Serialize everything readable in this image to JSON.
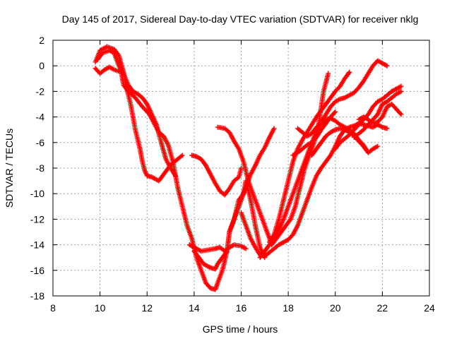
{
  "chart_data": {
    "type": "scatter",
    "title": "Day 145 of 2017, Sidereal Day-to-day VTEC variation (SDTVAR) for receiver nklg",
    "xlabel": "GPS time / hours",
    "ylabel": "SDTVAR / TECUs",
    "xlim": [
      8,
      24
    ],
    "ylim": [
      -18,
      2
    ],
    "xticks": [
      "8",
      "10",
      "12",
      "14",
      "16",
      "18",
      "20",
      "22",
      "24"
    ],
    "yticks": [
      "2",
      "0",
      "-2",
      "-4",
      "-6",
      "-8",
      "-10",
      "-12",
      "-14",
      "-16",
      "-18"
    ],
    "grid": true,
    "marker": "plus",
    "color": "#ff0000",
    "series": [
      {
        "points": [
          [
            9.8,
            0.3
          ],
          [
            10.0,
            1.2
          ],
          [
            10.3,
            1.5
          ],
          [
            10.6,
            1.3
          ],
          [
            10.8,
            0.8
          ],
          [
            11.0,
            -0.5
          ],
          [
            11.1,
            -1.5
          ],
          [
            11.3,
            -3.0
          ],
          [
            11.5,
            -5.0
          ],
          [
            11.7,
            -6.5
          ],
          [
            11.8,
            -7.5
          ],
          [
            11.9,
            -8.2
          ],
          [
            12.0,
            -8.6
          ],
          [
            12.2,
            -8.7
          ],
          [
            12.5,
            -9.0
          ],
          [
            12.7,
            -8.5
          ],
          [
            12.9,
            -8.0
          ],
          [
            13.1,
            -7.6
          ],
          [
            13.3,
            -7.3
          ],
          [
            13.5,
            -7.0
          ]
        ]
      },
      {
        "points": [
          [
            9.9,
            0.5
          ],
          [
            10.1,
            1.0
          ],
          [
            10.4,
            1.2
          ],
          [
            10.6,
            1.0
          ],
          [
            10.8,
            0.0
          ],
          [
            11.0,
            -0.6
          ],
          [
            11.2,
            -1.5
          ],
          [
            11.4,
            -2.0
          ],
          [
            11.6,
            -2.2
          ],
          [
            11.8,
            -2.5
          ],
          [
            12.0,
            -3.0
          ],
          [
            12.2,
            -3.8
          ],
          [
            12.4,
            -4.6
          ],
          [
            12.6,
            -6.0
          ],
          [
            12.8,
            -7.3
          ],
          [
            13.0,
            -8.0
          ],
          [
            13.2,
            -8.6
          ]
        ]
      },
      {
        "points": [
          [
            9.8,
            -0.2
          ],
          [
            10.0,
            -0.6
          ],
          [
            10.2,
            -0.3
          ],
          [
            10.4,
            -0.1
          ],
          [
            10.6,
            -0.3
          ],
          [
            10.9,
            -0.5
          ],
          [
            11.0,
            -1.5
          ],
          [
            11.2,
            -2.0
          ],
          [
            11.5,
            -2.5
          ],
          [
            11.8,
            -3.2
          ],
          [
            12.1,
            -3.8
          ],
          [
            12.3,
            -4.5
          ],
          [
            12.5,
            -5.2
          ],
          [
            12.7,
            -5.5
          ],
          [
            12.9,
            -6.2
          ],
          [
            13.1,
            -7.5
          ],
          [
            13.3,
            -9.5
          ],
          [
            13.5,
            -11.0
          ],
          [
            13.7,
            -12.5
          ],
          [
            13.9,
            -13.5
          ],
          [
            14.1,
            -15.0
          ],
          [
            14.3,
            -16.0
          ],
          [
            14.5,
            -17.0
          ],
          [
            14.7,
            -17.4
          ],
          [
            14.9,
            -17.5
          ],
          [
            15.0,
            -17.0
          ],
          [
            15.2,
            -16.0
          ],
          [
            15.4,
            -14.5
          ],
          [
            15.5,
            -13.0
          ],
          [
            15.7,
            -12.0
          ],
          [
            15.9,
            -10.5
          ],
          [
            16.1,
            -10.0
          ],
          [
            16.2,
            -9.0
          ],
          [
            16.4,
            -10.5
          ],
          [
            16.6,
            -12.5
          ],
          [
            16.8,
            -14.2
          ],
          [
            17.0,
            -15.0
          ]
        ]
      },
      {
        "points": [
          [
            13.8,
            -14.0
          ],
          [
            14.0,
            -14.2
          ],
          [
            14.3,
            -14.5
          ],
          [
            14.6,
            -14.4
          ],
          [
            14.9,
            -14.3
          ],
          [
            15.1,
            -14.2
          ],
          [
            15.3,
            -14.5
          ],
          [
            15.5,
            -14.2
          ],
          [
            15.7,
            -14.0
          ],
          [
            16.0,
            -14.1
          ],
          [
            16.2,
            -14.3
          ]
        ]
      },
      {
        "points": [
          [
            13.9,
            -7.0
          ],
          [
            14.1,
            -7.1
          ],
          [
            14.3,
            -7.3
          ],
          [
            14.5,
            -7.8
          ],
          [
            14.7,
            -8.5
          ],
          [
            14.9,
            -9.2
          ],
          [
            15.1,
            -9.8
          ],
          [
            15.3,
            -10.1
          ],
          [
            15.5,
            -9.6
          ],
          [
            15.7,
            -9.0
          ],
          [
            15.9,
            -8.7
          ],
          [
            16.0,
            -8.0
          ]
        ]
      },
      {
        "points": [
          [
            14.0,
            -14.5
          ],
          [
            14.2,
            -15.0
          ],
          [
            14.4,
            -15.5
          ],
          [
            14.7,
            -15.8
          ],
          [
            14.9,
            -15.9
          ],
          [
            15.0,
            -15.5
          ],
          [
            15.2,
            -15.0
          ],
          [
            15.4,
            -14.5
          ],
          [
            15.5,
            -13.0
          ],
          [
            15.6,
            -12.5
          ],
          [
            15.8,
            -11.5
          ],
          [
            16.0,
            -10.5
          ],
          [
            16.2,
            -9.5
          ],
          [
            16.4,
            -8.5
          ],
          [
            16.6,
            -7.8
          ],
          [
            16.8,
            -7.0
          ],
          [
            17.0,
            -6.4
          ],
          [
            17.2,
            -5.6
          ],
          [
            17.4,
            -4.9
          ]
        ]
      },
      {
        "points": [
          [
            15.0,
            -4.8
          ],
          [
            15.3,
            -4.9
          ],
          [
            15.5,
            -5.2
          ],
          [
            15.7,
            -5.9
          ],
          [
            15.9,
            -6.5
          ],
          [
            16.1,
            -7.5
          ],
          [
            16.3,
            -9.0
          ],
          [
            16.5,
            -10.0
          ],
          [
            16.7,
            -11.0
          ],
          [
            16.9,
            -12.0
          ],
          [
            17.1,
            -13.0
          ],
          [
            17.3,
            -14.0
          ],
          [
            17.5,
            -13.5
          ],
          [
            17.7,
            -13.0
          ],
          [
            17.9,
            -12.5
          ],
          [
            18.1,
            -12.0
          ],
          [
            18.3,
            -11.0
          ],
          [
            18.5,
            -9.5
          ],
          [
            18.7,
            -8.0
          ],
          [
            18.9,
            -7.0
          ],
          [
            19.1,
            -6.0
          ],
          [
            19.3,
            -4.5
          ],
          [
            19.5,
            -2.0
          ],
          [
            19.7,
            -0.6
          ]
        ]
      },
      {
        "points": [
          [
            16.0,
            -11.5
          ],
          [
            16.2,
            -12.5
          ],
          [
            16.4,
            -13.5
          ],
          [
            16.6,
            -14.2
          ],
          [
            16.8,
            -14.8
          ],
          [
            17.0,
            -14.9
          ],
          [
            17.2,
            -14.6
          ],
          [
            17.4,
            -14.3
          ],
          [
            17.6,
            -14.0
          ],
          [
            17.8,
            -13.8
          ],
          [
            18.0,
            -13.6
          ],
          [
            18.2,
            -13.2
          ],
          [
            18.4,
            -12.5
          ],
          [
            18.6,
            -11.5
          ],
          [
            18.8,
            -10.5
          ],
          [
            19.0,
            -9.5
          ],
          [
            19.2,
            -8.6
          ],
          [
            19.4,
            -8.0
          ],
          [
            19.6,
            -7.5
          ],
          [
            19.8,
            -7.0
          ],
          [
            20.0,
            -6.3
          ],
          [
            20.2,
            -5.5
          ],
          [
            20.4,
            -5.0
          ],
          [
            20.6,
            -4.8
          ],
          [
            20.8,
            -4.7
          ],
          [
            21.0,
            -4.5
          ],
          [
            21.2,
            -4.6
          ],
          [
            21.4,
            -4.7
          ],
          [
            21.6,
            -4.8
          ],
          [
            21.8,
            -4.6
          ],
          [
            22.0,
            -4.8
          ],
          [
            22.2,
            -4.9
          ]
        ]
      },
      {
        "points": [
          [
            16.8,
            -15.0
          ],
          [
            17.0,
            -14.5
          ],
          [
            17.2,
            -14.0
          ],
          [
            17.4,
            -13.5
          ],
          [
            17.6,
            -12.8
          ],
          [
            17.8,
            -12.0
          ],
          [
            18.0,
            -11.0
          ],
          [
            18.2,
            -10.0
          ],
          [
            18.4,
            -9.0
          ],
          [
            18.6,
            -8.0
          ],
          [
            18.8,
            -7.0
          ],
          [
            19.0,
            -6.0
          ],
          [
            19.2,
            -5.2
          ],
          [
            19.4,
            -4.4
          ],
          [
            19.6,
            -3.8
          ],
          [
            19.8,
            -3.2
          ],
          [
            20.0,
            -2.8
          ],
          [
            20.2,
            -2.6
          ],
          [
            20.4,
            -2.5
          ],
          [
            20.6,
            -2.3
          ],
          [
            20.8,
            -2.1
          ],
          [
            21.0,
            -1.7
          ],
          [
            21.2,
            -1.2
          ],
          [
            21.4,
            -0.6
          ],
          [
            21.6,
            0.0
          ],
          [
            21.8,
            0.4
          ],
          [
            22.0,
            0.2
          ],
          [
            22.2,
            0.0
          ]
        ]
      },
      {
        "points": [
          [
            17.2,
            -13.8
          ],
          [
            17.4,
            -13.2
          ],
          [
            17.6,
            -12.0
          ],
          [
            17.8,
            -10.5
          ],
          [
            18.0,
            -9.0
          ],
          [
            18.2,
            -7.5
          ],
          [
            18.4,
            -6.5
          ],
          [
            18.6,
            -5.8
          ],
          [
            18.8,
            -5.2
          ],
          [
            19.0,
            -4.6
          ],
          [
            19.2,
            -4.0
          ],
          [
            19.4,
            -3.5
          ],
          [
            19.6,
            -3.0
          ],
          [
            19.8,
            -2.5
          ],
          [
            20.0,
            -2.0
          ],
          [
            20.2,
            -1.6
          ],
          [
            20.4,
            -1.0
          ],
          [
            20.6,
            -0.5
          ]
        ]
      },
      {
        "points": [
          [
            18.2,
            -7.0
          ],
          [
            18.4,
            -6.8
          ],
          [
            18.6,
            -6.5
          ],
          [
            18.8,
            -6.2
          ],
          [
            19.0,
            -6.0
          ],
          [
            19.2,
            -5.6
          ],
          [
            19.4,
            -5.0
          ],
          [
            19.6,
            -4.5
          ],
          [
            19.8,
            -4.0
          ],
          [
            20.0,
            -3.6
          ]
        ]
      },
      {
        "points": [
          [
            18.4,
            -4.9
          ],
          [
            18.6,
            -5.2
          ],
          [
            18.8,
            -5.5
          ],
          [
            19.0,
            -5.3
          ],
          [
            19.2,
            -4.8
          ],
          [
            19.4,
            -4.5
          ],
          [
            19.6,
            -4.2
          ],
          [
            19.8,
            -4.1
          ],
          [
            20.0,
            -4.3
          ],
          [
            20.2,
            -4.6
          ],
          [
            20.4,
            -4.8
          ],
          [
            20.6,
            -5.0
          ],
          [
            20.8,
            -5.3
          ],
          [
            21.0,
            -5.8
          ],
          [
            21.2,
            -6.2
          ],
          [
            21.3,
            -6.5
          ]
        ]
      },
      {
        "points": [
          [
            19.0,
            -7.0
          ],
          [
            19.2,
            -6.5
          ],
          [
            19.4,
            -6.0
          ],
          [
            19.6,
            -5.5
          ],
          [
            19.8,
            -5.2
          ],
          [
            20.0,
            -5.0
          ],
          [
            20.2,
            -4.9
          ],
          [
            20.4,
            -5.0
          ],
          [
            20.6,
            -5.2
          ],
          [
            20.8,
            -5.5
          ],
          [
            21.0,
            -5.9
          ],
          [
            21.2,
            -6.3
          ],
          [
            21.4,
            -6.8
          ],
          [
            21.6,
            -6.5
          ],
          [
            21.8,
            -6.3
          ]
        ]
      },
      {
        "points": [
          [
            20.0,
            -6.5
          ],
          [
            20.2,
            -6.0
          ],
          [
            20.4,
            -5.7
          ],
          [
            20.6,
            -5.4
          ],
          [
            20.8,
            -5.0
          ],
          [
            21.0,
            -4.6
          ],
          [
            21.2,
            -4.2
          ],
          [
            21.4,
            -3.8
          ],
          [
            21.6,
            -3.2
          ],
          [
            21.8,
            -2.8
          ],
          [
            22.0,
            -2.6
          ],
          [
            22.2,
            -2.3
          ],
          [
            22.4,
            -2.0
          ],
          [
            22.6,
            -1.8
          ],
          [
            22.8,
            -1.6
          ]
        ]
      },
      {
        "points": [
          [
            21.0,
            -4.2
          ],
          [
            21.2,
            -4.0
          ],
          [
            21.4,
            -4.2
          ],
          [
            21.6,
            -4.5
          ],
          [
            21.8,
            -4.4
          ],
          [
            22.0,
            -4.0
          ],
          [
            22.2,
            -3.2
          ],
          [
            22.4,
            -3.0
          ],
          [
            22.6,
            -3.4
          ],
          [
            22.8,
            -3.8
          ]
        ]
      },
      {
        "points": [
          [
            20.8,
            -5.6
          ],
          [
            21.0,
            -5.3
          ],
          [
            21.2,
            -5.0
          ],
          [
            21.4,
            -4.6
          ],
          [
            21.6,
            -4.2
          ],
          [
            21.8,
            -3.8
          ],
          [
            22.0,
            -3.0
          ],
          [
            22.2,
            -2.8
          ],
          [
            22.4,
            -2.5
          ],
          [
            22.6,
            -2.2
          ],
          [
            22.8,
            -2.0
          ]
        ]
      }
    ]
  }
}
